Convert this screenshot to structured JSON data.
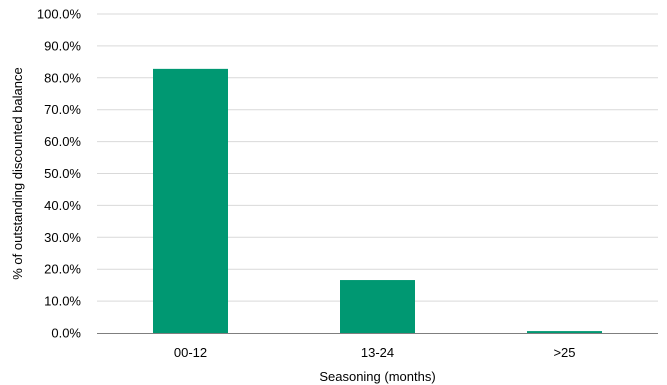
{
  "chart_data": {
    "type": "bar",
    "title": "",
    "xlabel": "Seasoning (months)",
    "ylabel": "% of outstanding discounted balance",
    "categories": [
      "00-12",
      "13-24",
      ">25"
    ],
    "values": [
      82.8,
      16.6,
      0.6
    ],
    "ylim": [
      0,
      100
    ],
    "yticks": [
      0,
      10,
      20,
      30,
      40,
      50,
      60,
      70,
      80,
      90,
      100
    ],
    "ytick_labels": [
      "0.0%",
      "10.0%",
      "20.0%",
      "30.0%",
      "40.0%",
      "50.0%",
      "60.0%",
      "70.0%",
      "80.0%",
      "90.0%",
      "100.0%"
    ],
    "grid": true,
    "legend": "none",
    "colors": {
      "bar": "#009872",
      "grid": "#d9d9d9",
      "axis": "#7f7f7f"
    }
  }
}
